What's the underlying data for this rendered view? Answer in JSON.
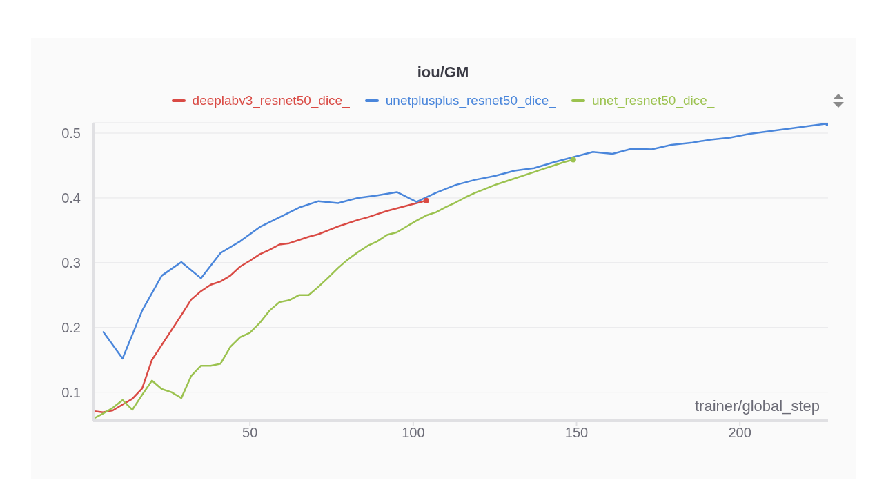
{
  "chart_data": {
    "type": "line",
    "title": "iou/GM",
    "xlabel": "trainer/global_step",
    "legend": "top",
    "grid": "y",
    "line_style": "solid",
    "xlim": [
      2,
      227
    ],
    "xticks": [
      50,
      100,
      150,
      200
    ],
    "ylim": [
      0.056,
      0.516
    ],
    "yticks": [
      0.1,
      0.2,
      0.3,
      0.4,
      0.5
    ],
    "series": [
      {
        "name": "deeplabv3_resnet50_dice_",
        "color": "#d94a44",
        "x": [
          2,
          5,
          8,
          11,
          14,
          17,
          20,
          23,
          26,
          29,
          32,
          35,
          38,
          41,
          44,
          47,
          50,
          53,
          56,
          59,
          62,
          65,
          68,
          71,
          74,
          77,
          80,
          83,
          86,
          89,
          92,
          95,
          98,
          101,
          104
        ],
        "values": [
          0.071,
          0.069,
          0.072,
          0.081,
          0.09,
          0.106,
          0.15,
          0.173,
          0.196,
          0.219,
          0.243,
          0.256,
          0.266,
          0.271,
          0.28,
          0.294,
          0.303,
          0.313,
          0.32,
          0.328,
          0.33,
          0.335,
          0.34,
          0.344,
          0.35,
          0.356,
          0.361,
          0.366,
          0.37,
          0.375,
          0.38,
          0.384,
          0.388,
          0.392,
          0.396
        ]
      },
      {
        "name": "unetplusplus_resnet50_dice_",
        "color": "#4a86db",
        "x": [
          5,
          11,
          17,
          23,
          29,
          35,
          41,
          47,
          53,
          59,
          65,
          71,
          77,
          83,
          89,
          95,
          101,
          107,
          113,
          119,
          125,
          131,
          137,
          143,
          149,
          155,
          161,
          167,
          173,
          179,
          185,
          191,
          197,
          203,
          209,
          215,
          221,
          227
        ],
        "values": [
          0.194,
          0.152,
          0.226,
          0.28,
          0.301,
          0.276,
          0.315,
          0.333,
          0.355,
          0.37,
          0.385,
          0.395,
          0.392,
          0.4,
          0.404,
          0.409,
          0.394,
          0.408,
          0.42,
          0.428,
          0.434,
          0.442,
          0.446,
          0.455,
          0.463,
          0.471,
          0.468,
          0.476,
          0.475,
          0.482,
          0.485,
          0.49,
          0.493,
          0.499,
          0.503,
          0.507,
          0.511,
          0.515
        ]
      },
      {
        "name": "unet_resnet50_dice_",
        "color": "#9bc24f",
        "x": [
          2,
          5,
          8,
          11,
          14,
          17,
          20,
          23,
          26,
          29,
          32,
          35,
          38,
          41,
          44,
          47,
          50,
          53,
          56,
          59,
          62,
          65,
          68,
          71,
          74,
          77,
          80,
          83,
          86,
          89,
          92,
          95,
          98,
          101,
          104,
          107,
          110,
          113,
          116,
          119,
          122,
          125,
          128,
          131,
          134,
          137,
          140,
          143,
          146,
          149
        ],
        "values": [
          0.059,
          0.067,
          0.076,
          0.088,
          0.073,
          0.096,
          0.118,
          0.105,
          0.1,
          0.091,
          0.125,
          0.141,
          0.141,
          0.144,
          0.17,
          0.185,
          0.192,
          0.207,
          0.226,
          0.239,
          0.242,
          0.25,
          0.25,
          0.263,
          0.277,
          0.292,
          0.305,
          0.316,
          0.326,
          0.333,
          0.343,
          0.347,
          0.356,
          0.365,
          0.373,
          0.378,
          0.386,
          0.393,
          0.401,
          0.408,
          0.414,
          0.42,
          0.425,
          0.43,
          0.435,
          0.44,
          0.445,
          0.45,
          0.455,
          0.459
        ]
      }
    ]
  }
}
